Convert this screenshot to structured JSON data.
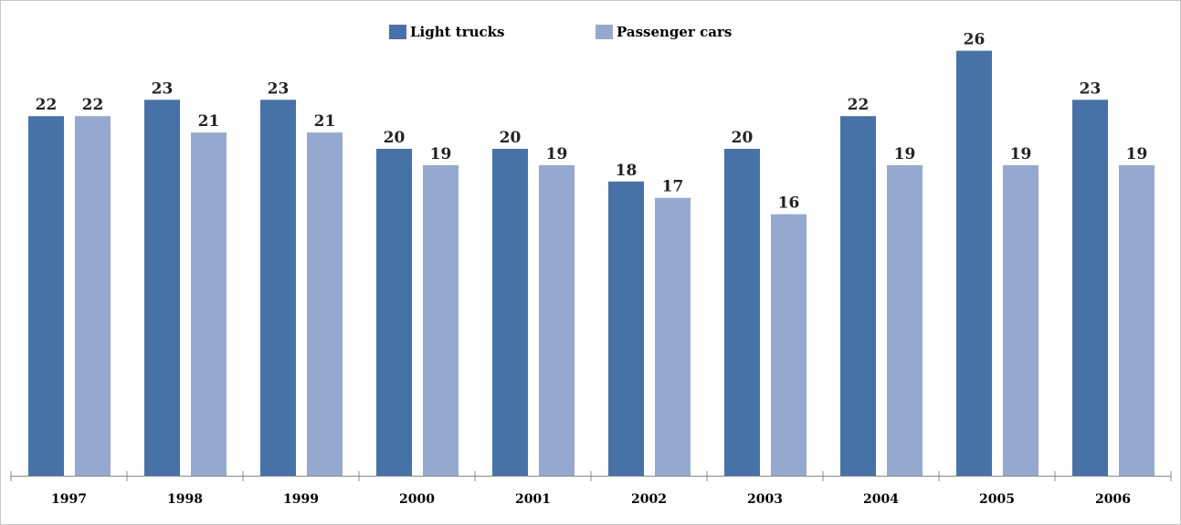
{
  "chart_data": {
    "type": "bar",
    "categories": [
      "1997",
      "1998",
      "1999",
      "2000",
      "2001",
      "2002",
      "2003",
      "2004",
      "2005",
      "2006"
    ],
    "series": [
      {
        "name": "Light trucks",
        "color": "#4672a8",
        "values": [
          22,
          23,
          23,
          20,
          20,
          18,
          20,
          22,
          26,
          23
        ],
        "labels": [
          "22",
          "23",
          "23",
          "20",
          "20",
          "18",
          "20",
          "22",
          "26",
          "23"
        ]
      },
      {
        "name": "Passenger cars",
        "color": "#95a9d0",
        "values": [
          22,
          21,
          21,
          19,
          19,
          17,
          16,
          19,
          19,
          19
        ],
        "labels": [
          "22",
          "21",
          "21",
          "19",
          "19",
          "17",
          "16",
          "19",
          "19",
          "19"
        ]
      }
    ],
    "title": "",
    "xlabel": "",
    "ylabel": "",
    "ylim": [
      0,
      29
    ],
    "grid": false,
    "legend_position": "top-center"
  }
}
